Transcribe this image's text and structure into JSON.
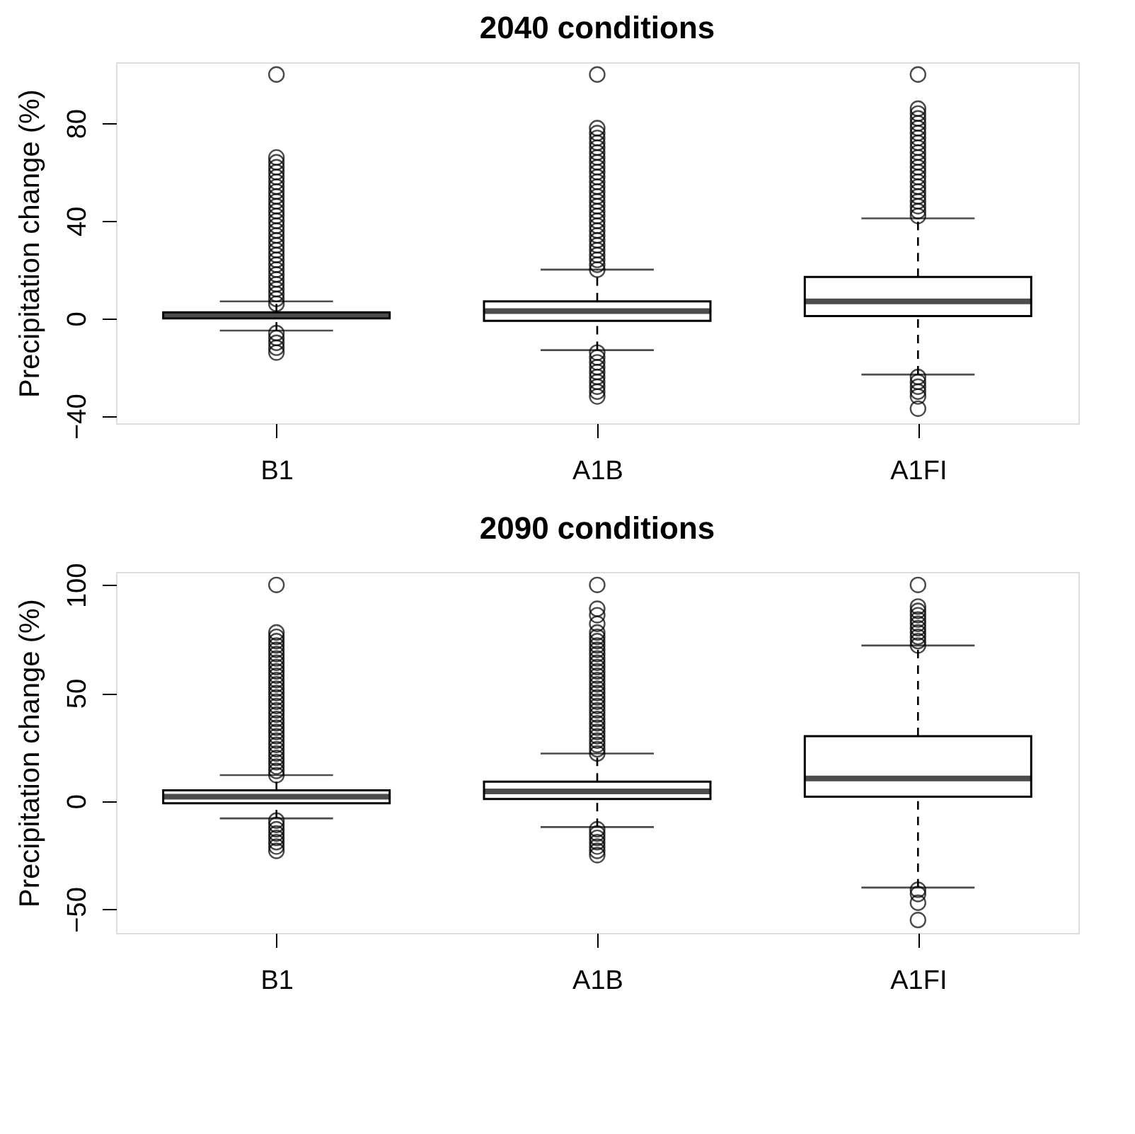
{
  "chart_data": [
    {
      "type": "box",
      "title": "2040 conditions",
      "ylabel": "Precipitation change (%)",
      "categories": [
        "B1",
        "A1B",
        "A1FI"
      ],
      "ylim": [
        -43,
        105
      ],
      "yticks": [
        -40,
        0,
        40,
        80
      ],
      "marker": "circle",
      "boxes": [
        {
          "low": -5,
          "q1": 0,
          "median": 1.5,
          "q3": 2.5,
          "high": 7,
          "outliers": [
            6,
            8,
            10,
            12,
            14,
            16,
            18,
            20,
            22,
            24,
            26,
            28,
            30,
            32,
            34,
            36,
            38,
            40,
            42,
            44,
            46,
            48,
            50,
            52,
            54,
            56,
            58,
            60,
            62,
            64,
            66,
            100,
            -6,
            -8,
            -10,
            -12,
            -14
          ]
        },
        {
          "low": -13,
          "q1": -1,
          "median": 3,
          "q3": 7,
          "high": 20,
          "outliers": [
            20,
            22,
            24,
            26,
            28,
            30,
            32,
            34,
            36,
            38,
            40,
            42,
            44,
            46,
            48,
            50,
            52,
            54,
            56,
            58,
            60,
            62,
            64,
            66,
            68,
            70,
            72,
            74,
            76,
            78,
            100,
            -14,
            -16,
            -18,
            -20,
            -22,
            -24,
            -26,
            -28,
            -30,
            -32
          ]
        },
        {
          "low": -23,
          "q1": 1,
          "median": 7,
          "q3": 17,
          "high": 41,
          "outliers": [
            42,
            44,
            46,
            48,
            50,
            52,
            54,
            56,
            58,
            60,
            62,
            64,
            66,
            68,
            70,
            72,
            74,
            76,
            78,
            80,
            82,
            84,
            86,
            100,
            -24,
            -26,
            -28,
            -30,
            -32,
            -37
          ]
        }
      ]
    },
    {
      "type": "box",
      "title": "2090 conditions",
      "ylabel": "Precipitation change (%)",
      "categories": [
        "B1",
        "A1B",
        "A1FI"
      ],
      "ylim": [
        -61,
        106
      ],
      "yticks": [
        -50,
        0,
        50,
        100
      ],
      "marker": "circle",
      "boxes": [
        {
          "low": -8,
          "q1": -1,
          "median": 2,
          "q3": 5,
          "high": 12,
          "outliers": [
            12,
            14,
            16,
            18,
            20,
            22,
            24,
            26,
            28,
            30,
            32,
            34,
            36,
            38,
            40,
            42,
            44,
            46,
            48,
            50,
            52,
            54,
            56,
            58,
            60,
            62,
            64,
            66,
            68,
            70,
            72,
            74,
            76,
            78,
            100,
            -9,
            -11,
            -13,
            -15,
            -17,
            -19,
            -21,
            -23
          ]
        },
        {
          "low": -12,
          "q1": 1,
          "median": 4.5,
          "q3": 9,
          "high": 22,
          "outliers": [
            22,
            24,
            26,
            28,
            30,
            32,
            34,
            36,
            38,
            40,
            42,
            44,
            46,
            48,
            50,
            52,
            54,
            56,
            58,
            60,
            62,
            64,
            66,
            68,
            70,
            72,
            74,
            76,
            78,
            82,
            86,
            89,
            100,
            -13,
            -15,
            -17,
            -19,
            -21,
            -23,
            -25
          ]
        },
        {
          "low": -40,
          "q1": 2,
          "median": 10.5,
          "q3": 30,
          "high": 72,
          "outliers": [
            72,
            74,
            76,
            78,
            80,
            82,
            84,
            86,
            88,
            90,
            100,
            -41,
            -43,
            -47,
            -55
          ]
        }
      ]
    }
  ]
}
